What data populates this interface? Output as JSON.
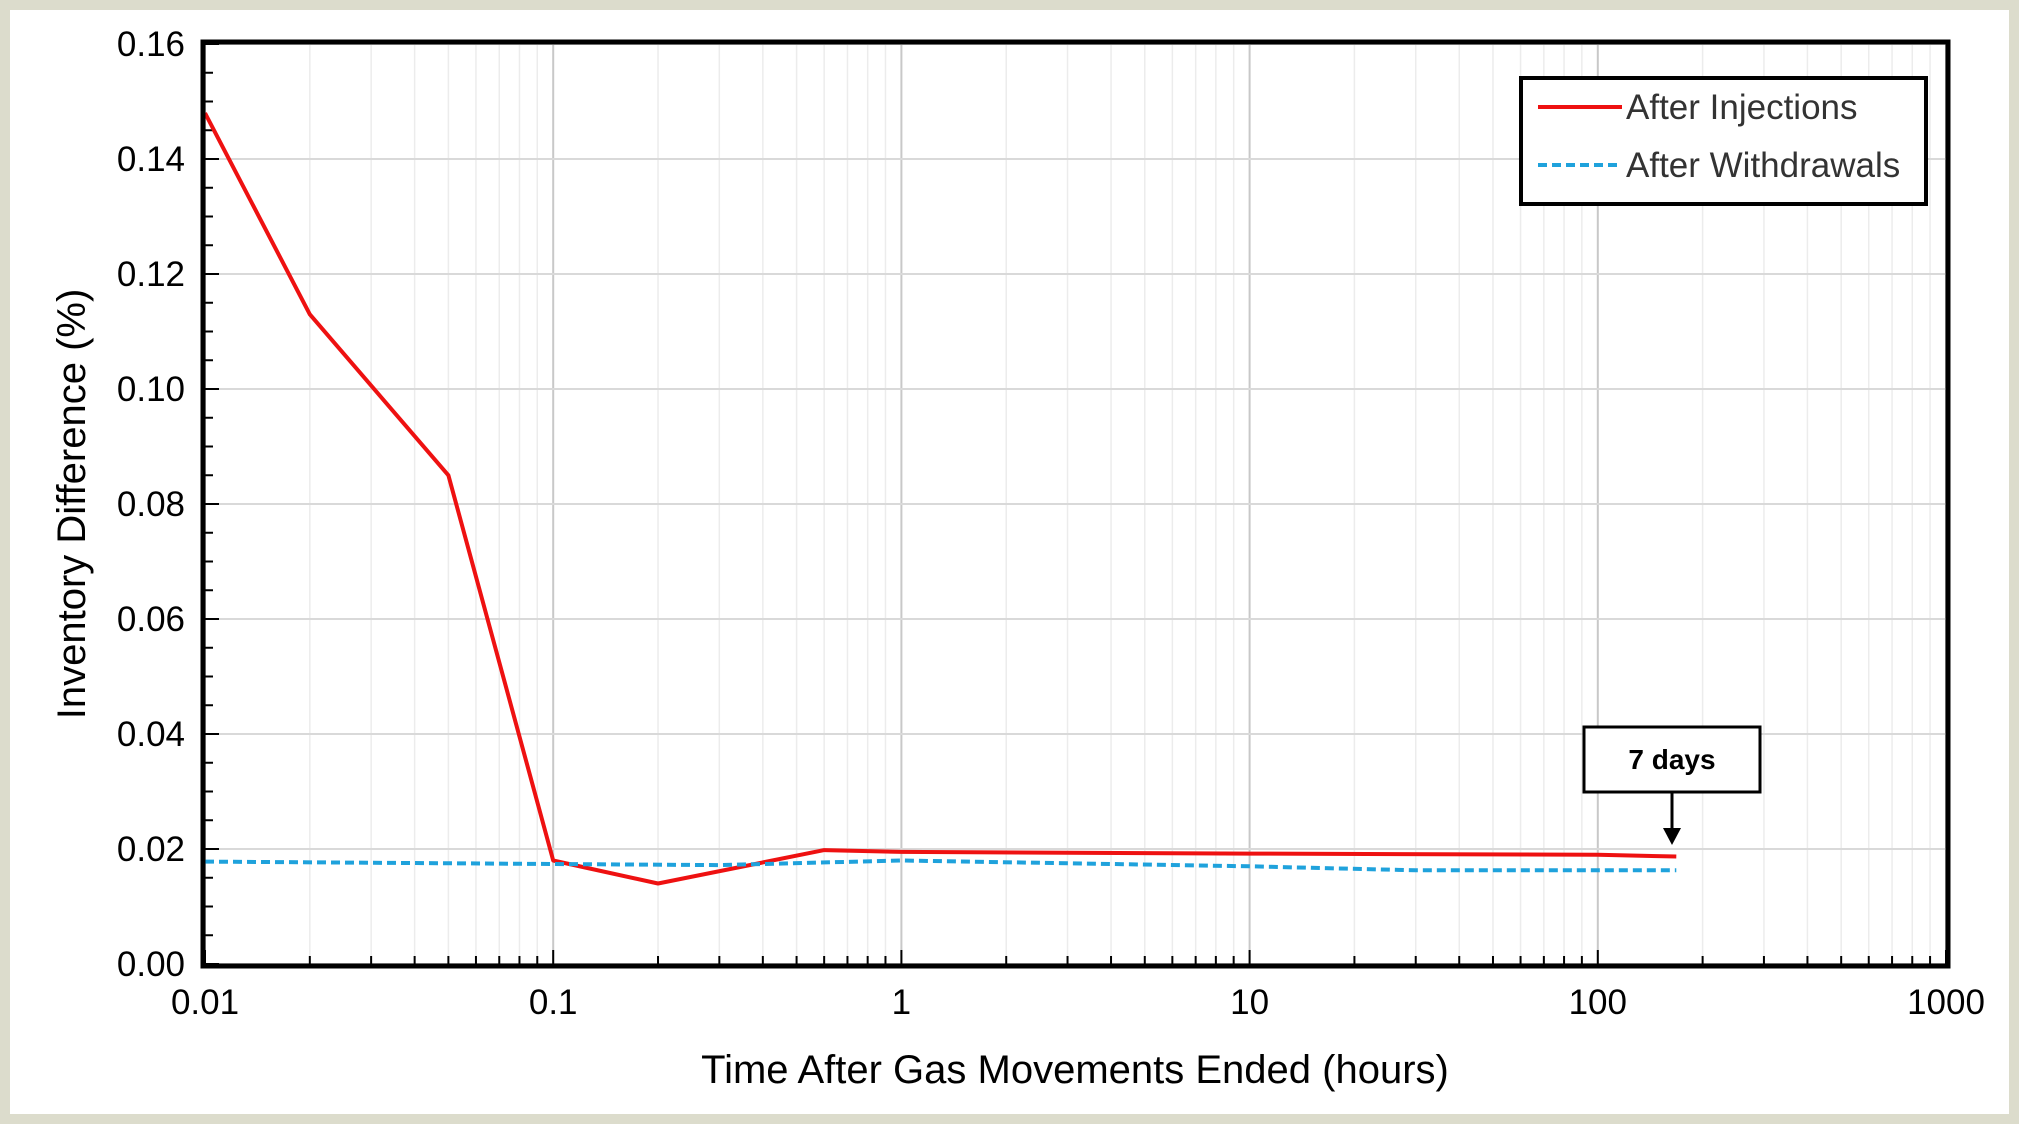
{
  "chart_data": {
    "type": "line",
    "title": "",
    "xlabel": "Time After Gas Movements Ended (hours)",
    "ylabel": "Inventory Difference (%)",
    "x_scale": "log",
    "xlim": [
      0.01,
      1000
    ],
    "ylim": [
      0,
      0.16
    ],
    "x_ticks": [
      "0.01",
      "0.1",
      "1",
      "10",
      "100",
      "1000"
    ],
    "y_ticks": [
      "0.00",
      "0.02",
      "0.04",
      "0.06",
      "0.08",
      "0.10",
      "0.12",
      "0.14",
      "0.16"
    ],
    "grid": true,
    "legend_position": "top-right",
    "series": [
      {
        "name": "After Injections",
        "color": "#ee1111",
        "style": "solid",
        "x": [
          0.01,
          0.02,
          0.05,
          0.1,
          0.2,
          0.6,
          1,
          10,
          100,
          168
        ],
        "y": [
          0.148,
          0.113,
          0.085,
          0.018,
          0.014,
          0.0198,
          0.0195,
          0.0192,
          0.019,
          0.0187
        ]
      },
      {
        "name": "After Withdrawals",
        "color": "#1fa2dc",
        "style": "dashed",
        "x": [
          0.01,
          0.1,
          0.3,
          1,
          10,
          30,
          100,
          168
        ],
        "y": [
          0.0178,
          0.0174,
          0.0172,
          0.018,
          0.017,
          0.0163,
          0.0163,
          0.0163
        ]
      }
    ],
    "annotations": [
      {
        "text": "7 days",
        "x": 168,
        "y": 0.0187
      }
    ]
  }
}
